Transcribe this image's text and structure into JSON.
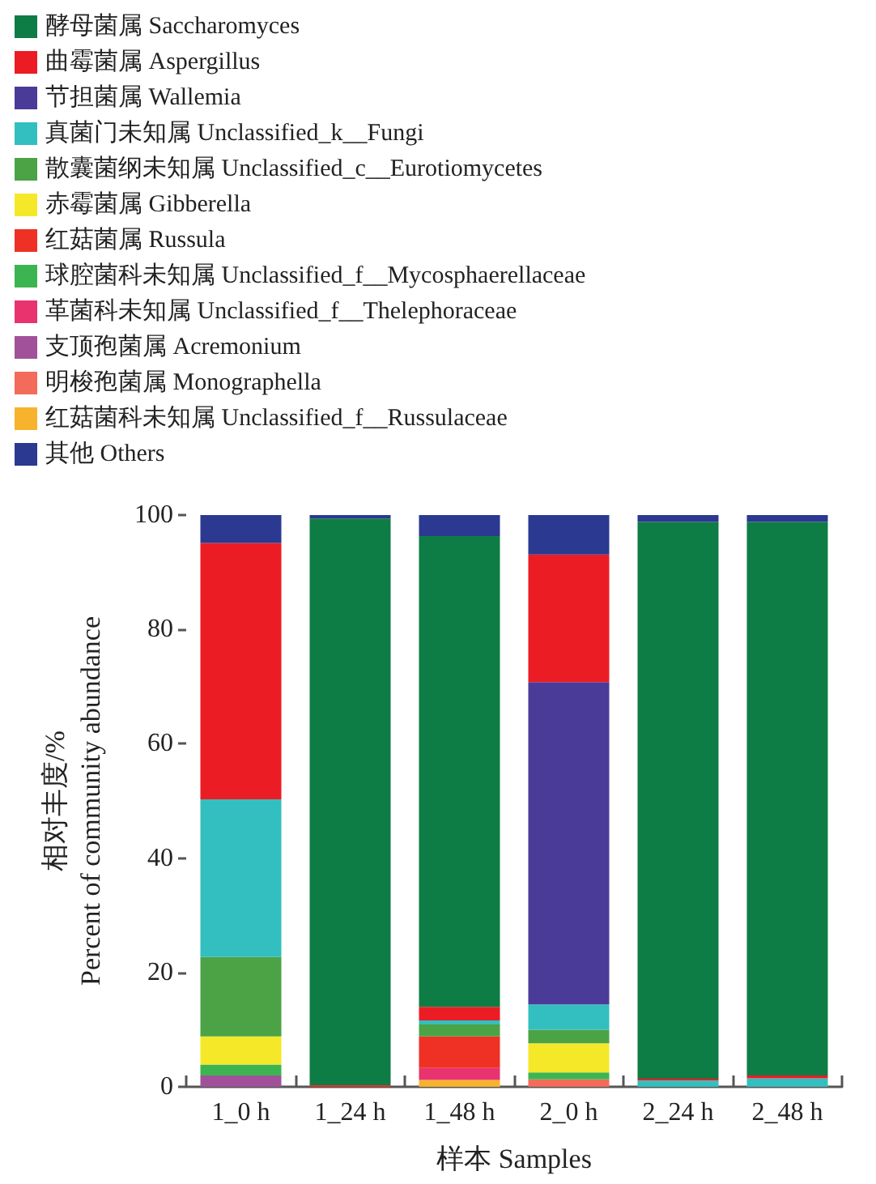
{
  "chart_data": {
    "type": "bar",
    "stacked": true,
    "xlabel": "样本 Samples",
    "ylabel": "相对丰度/%\nPercent of community abundance",
    "categories": [
      "1_0 h",
      "1_24 h",
      "1_48 h",
      "2_0 h",
      "2_24 h",
      "2_48 h"
    ],
    "ylim": [
      0,
      100
    ],
    "yticks": [
      0,
      20,
      40,
      60,
      80,
      100
    ],
    "grid": false,
    "legend": "top left",
    "series": [
      {
        "name": "红菇菌科未知属 Unclassified_f__Russulaceae",
        "color": "#f7b32b",
        "values": [
          0,
          0,
          1.2,
          0,
          0,
          0
        ]
      },
      {
        "name": "明梭孢菌属 Monographella",
        "color": "#f26b5b",
        "values": [
          0,
          0,
          0,
          1.3,
          0,
          0
        ]
      },
      {
        "name": "支顶孢菌属 Acremonium",
        "color": "#a05199",
        "values": [
          2.0,
          0,
          0,
          0,
          0,
          0
        ]
      },
      {
        "name": "革菌科未知属 Unclassified_f__Thelephoraceae",
        "color": "#e8336f",
        "values": [
          0,
          0,
          2.1,
          0,
          0,
          0
        ]
      },
      {
        "name": "球腔菌科未知属 Unclassified_f__Mycosphaerellaceae",
        "color": "#3cb550",
        "values": [
          1.9,
          0,
          0,
          1.2,
          0,
          0
        ]
      },
      {
        "name": "红菇菌属 Russula",
        "color": "#ee3124",
        "values": [
          0,
          0.3,
          5.5,
          0,
          0,
          0
        ]
      },
      {
        "name": "赤霉菌属 Gibberella",
        "color": "#f5e828",
        "values": [
          4.9,
          0,
          0,
          5.1,
          0,
          0
        ]
      },
      {
        "name": "散囊菌纲未知属 Unclassified_c__Eurotiomycetes",
        "color": "#4ba346",
        "values": [
          13.9,
          0,
          2.1,
          2.4,
          0,
          0
        ]
      },
      {
        "name": "真菌门未知属 Unclassified_k__Fungi",
        "color": "#33bfbf",
        "values": [
          27.6,
          0,
          0.7,
          4.4,
          1.1,
          1.5
        ]
      },
      {
        "name": "节担菌属 Wallemia",
        "color": "#4b3b98",
        "values": [
          0,
          0,
          0,
          56.4,
          0,
          0
        ]
      },
      {
        "name": "曲霉菌属 Aspergillus",
        "color": "#ec1c24",
        "values": [
          44.8,
          0,
          2.4,
          22.3,
          0.3,
          0.5
        ]
      },
      {
        "name": "酵母菌属 Saccharomyces",
        "color": "#0e7c45",
        "values": [
          0,
          99.1,
          82.3,
          0,
          97.4,
          96.8
        ]
      },
      {
        "name": "其他 Others",
        "color": "#2b3990",
        "values": [
          4.9,
          0.6,
          3.7,
          6.9,
          1.2,
          1.2
        ]
      }
    ]
  }
}
